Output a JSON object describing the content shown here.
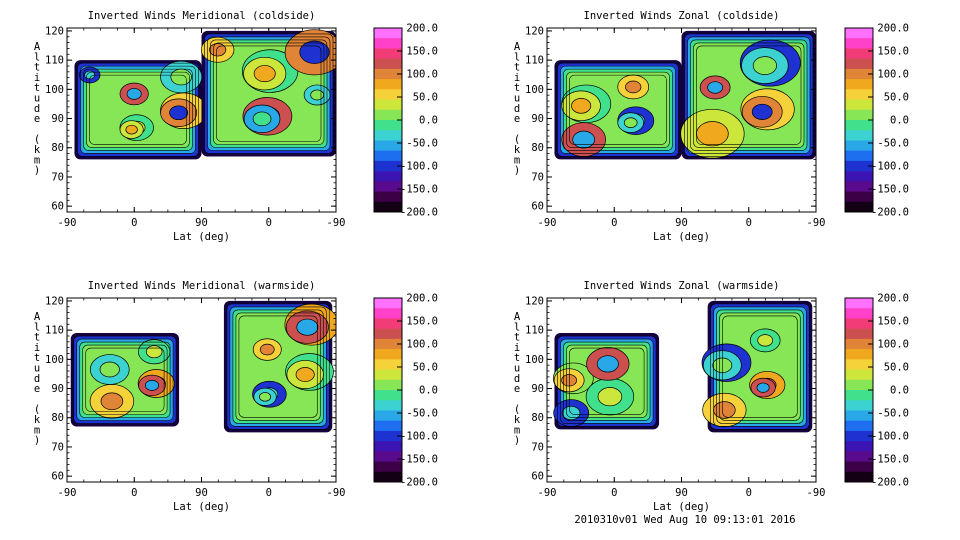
{
  "footer": "2010310v01 Wed Aug 10 09:13:01 2016",
  "colorbar": {
    "ticks": [
      "200.0",
      "150.0",
      "100.0",
      "50.0",
      "0.0",
      "-50.0",
      "-100.0",
      "-150.0",
      "-200.0"
    ],
    "colors_top_to_bottom": [
      "#ff70ff",
      "#ff40c8",
      "#f23c78",
      "#cc5050",
      "#e08438",
      "#f0a81e",
      "#f5d23a",
      "#cce63c",
      "#86e656",
      "#40e08c",
      "#3cd2d2",
      "#28a8e6",
      "#1e6ef0",
      "#1e32d2",
      "#3c14b4",
      "#5a0a8c",
      "#3c0046",
      "#140014"
    ]
  },
  "chart_data": [
    {
      "type": "heatmap",
      "title": "Inverted Winds Meridional (coldside)",
      "xlabel": "Lat (deg)",
      "ylabel": "Altitude (km)",
      "xticks": [
        "-90",
        "0",
        "90",
        "0",
        "-90"
      ],
      "yticks": [
        "60",
        "70",
        "80",
        "90",
        "100",
        "110",
        "120"
      ],
      "ylim": [
        58,
        121
      ],
      "zlim": [
        -200,
        200
      ],
      "regions": [
        {
          "x": [
            -80,
            90
          ],
          "y": [
            76,
            110
          ]
        },
        {
          "x": [
            90,
            270
          ],
          "y": [
            77,
            120
          ]
        }
      ]
    },
    {
      "type": "heatmap",
      "title": "Inverted Winds Zonal (coldside)",
      "xlabel": "Lat (deg)",
      "ylabel": "Altitude (km)",
      "xticks": [
        "-90",
        "0",
        "90",
        "0",
        "-90"
      ],
      "yticks": [
        "60",
        "70",
        "80",
        "90",
        "100",
        "110",
        "120"
      ],
      "ylim": [
        58,
        121
      ],
      "zlim": [
        -200,
        200
      ],
      "regions": [
        {
          "x": [
            -80,
            90
          ],
          "y": [
            76,
            110
          ]
        },
        {
          "x": [
            90,
            270
          ],
          "y": [
            76,
            120
          ]
        }
      ]
    },
    {
      "type": "heatmap",
      "title": "Inverted Winds Meridional (warmside)",
      "xlabel": "Lat (deg)",
      "ylabel": "Altitude (km)",
      "xticks": [
        "-90",
        "0",
        "90",
        "0",
        "-90"
      ],
      "yticks": [
        "60",
        "70",
        "80",
        "90",
        "100",
        "110",
        "120"
      ],
      "ylim": [
        58,
        121
      ],
      "zlim": [
        -200,
        200
      ],
      "regions": [
        {
          "x": [
            -85,
            60
          ],
          "y": [
            77,
            109
          ]
        },
        {
          "x": [
            120,
            265
          ],
          "y": [
            75,
            120
          ]
        }
      ]
    },
    {
      "type": "heatmap",
      "title": "Inverted Winds Zonal (warmside)",
      "xlabel": "Lat (deg)",
      "ylabel": "Altitude (km)",
      "xticks": [
        "-90",
        "0",
        "90",
        "0",
        "-90"
      ],
      "yticks": [
        "60",
        "70",
        "80",
        "90",
        "100",
        "110",
        "120"
      ],
      "ylim": [
        58,
        121
      ],
      "zlim": [
        -200,
        200
      ],
      "regions": [
        {
          "x": [
            -80,
            60
          ],
          "y": [
            76,
            109
          ]
        },
        {
          "x": [
            125,
            265
          ],
          "y": [
            75,
            120
          ]
        }
      ]
    }
  ]
}
